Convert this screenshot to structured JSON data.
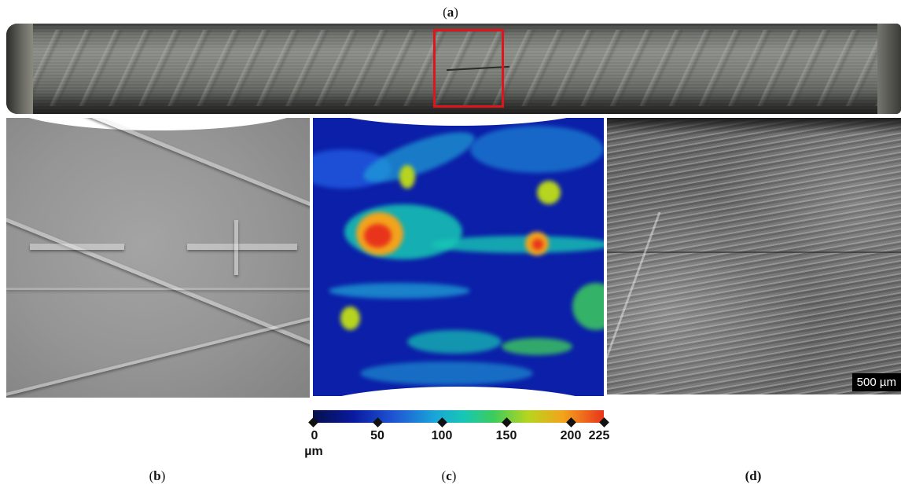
{
  "captions": {
    "a": "a",
    "b": "b",
    "c": "c",
    "d": "(d)"
  },
  "scale_bar": "500 µm",
  "colorbar": {
    "ticks": [
      "0",
      "50",
      "100",
      "150",
      "200",
      "225"
    ],
    "unit": "µm",
    "colors": [
      "#06104a",
      "#0a1aa0",
      "#1aa6d8",
      "#3ccc5d",
      "#f3a31c",
      "#e8341b"
    ]
  },
  "highlight_color": "#e0141b"
}
